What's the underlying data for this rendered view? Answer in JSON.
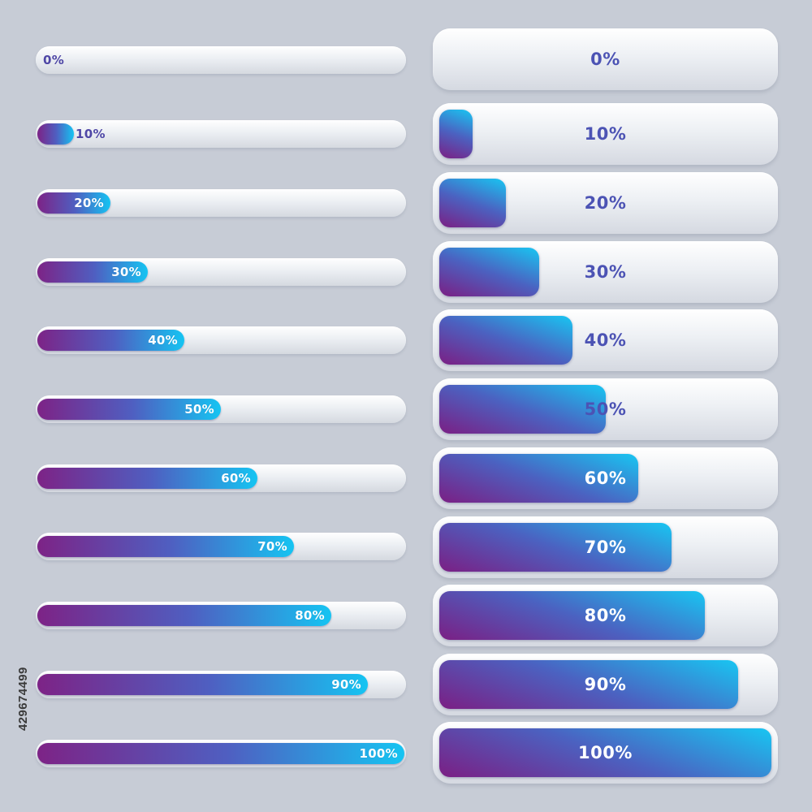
{
  "thin_bars": [
    {
      "label": "0%",
      "value": 0
    },
    {
      "label": "10%",
      "value": 10
    },
    {
      "label": "20%",
      "value": 20
    },
    {
      "label": "30%",
      "value": 30
    },
    {
      "label": "40%",
      "value": 40
    },
    {
      "label": "50%",
      "value": 50
    },
    {
      "label": "60%",
      "value": 60
    },
    {
      "label": "70%",
      "value": 70
    },
    {
      "label": "80%",
      "value": 80
    },
    {
      "label": "90%",
      "value": 90
    },
    {
      "label": "100%",
      "value": 100
    }
  ],
  "big_bars": [
    {
      "label": "0%",
      "value": 0
    },
    {
      "label": "10%",
      "value": 10
    },
    {
      "label": "20%",
      "value": 20
    },
    {
      "label": "30%",
      "value": 30
    },
    {
      "label": "40%",
      "value": 40
    },
    {
      "label": "50%",
      "value": 50
    },
    {
      "label": "60%",
      "value": 60
    },
    {
      "label": "70%",
      "value": 70
    },
    {
      "label": "80%",
      "value": 80
    },
    {
      "label": "90%",
      "value": 90
    },
    {
      "label": "100%",
      "value": 100
    }
  ],
  "stock_id": "429674499",
  "colors": {
    "background": "#c7ccd6",
    "gradient_start": "#7d2386",
    "gradient_mid": "#4f5fc1",
    "gradient_end": "#15c4f2",
    "label_outside": "#4f47a6",
    "label_inside": "#ffffff"
  }
}
